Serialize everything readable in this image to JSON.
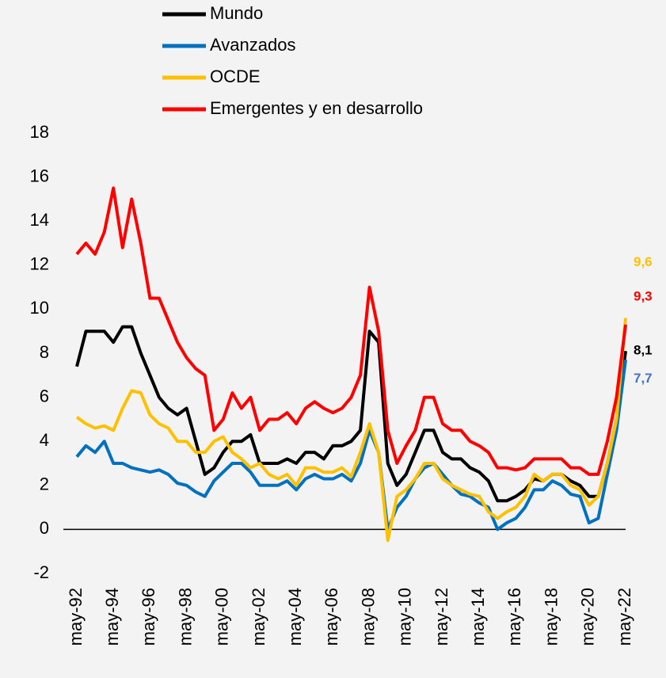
{
  "chart_data": {
    "type": "line",
    "categories": [
      "may-92",
      null,
      null,
      null,
      "may-94",
      null,
      null,
      null,
      "may-96",
      null,
      null,
      null,
      "may-98",
      null,
      null,
      null,
      "may-00",
      null,
      null,
      null,
      "may-02",
      null,
      null,
      null,
      "may-04",
      null,
      null,
      null,
      "may-06",
      null,
      null,
      null,
      "may-08",
      null,
      null,
      null,
      "may-10",
      null,
      null,
      null,
      "may-12",
      null,
      null,
      null,
      "may-14",
      null,
      null,
      null,
      "may-16",
      null,
      null,
      null,
      "may-18",
      null,
      null,
      null,
      "may-20",
      null,
      null,
      null,
      "may-22"
    ],
    "series": [
      {
        "name": "Mundo",
        "color": "#000000",
        "label_color": "#000000",
        "values": [
          7.4,
          9,
          9,
          9,
          8.5,
          9.2,
          9.2,
          8,
          7,
          6,
          5.5,
          5.2,
          5.5,
          4,
          2.5,
          2.8,
          3.5,
          4,
          4,
          4.3,
          3,
          3,
          3,
          3.2,
          3,
          3.5,
          3.5,
          3.2,
          3.8,
          3.8,
          4,
          4.5,
          9,
          8.5,
          3,
          2,
          2.5,
          3.5,
          4.5,
          4.5,
          3.5,
          3.2,
          3.2,
          2.8,
          2.6,
          2.2,
          1.3,
          1.3,
          1.5,
          1.8,
          2.3,
          2.2,
          2.5,
          2.5,
          2.2,
          2,
          1.5,
          1.5,
          3,
          5,
          8.1
        ],
        "value_labels": [
          null,
          null,
          null,
          null,
          null,
          null,
          null,
          null,
          null,
          null,
          null,
          null,
          null,
          null,
          null,
          null,
          null,
          null,
          null,
          null,
          null,
          null,
          null,
          null,
          null,
          null,
          null,
          null,
          null,
          null,
          null,
          null,
          null,
          null,
          null,
          null,
          null,
          null,
          null,
          null,
          null,
          null,
          null,
          null,
          null,
          null,
          null,
          null,
          null,
          null,
          null,
          null,
          null,
          null,
          null,
          null,
          null,
          null,
          null,
          null,
          "8,1"
        ]
      },
      {
        "name": "Avanzados",
        "color": "#0070c0",
        "label_color": "#4472c4",
        "values": [
          3.3,
          3.8,
          3.5,
          4,
          3,
          3,
          2.8,
          2.7,
          2.6,
          2.7,
          2.5,
          2.1,
          2,
          1.7,
          1.5,
          2.2,
          2.6,
          3,
          3,
          2.6,
          2,
          2,
          2,
          2.2,
          1.8,
          2.3,
          2.5,
          2.3,
          2.3,
          2.5,
          2.2,
          3,
          4.5,
          3.5,
          0,
          1,
          1.5,
          2.3,
          2.8,
          3,
          2.5,
          2,
          1.6,
          1.5,
          1.2,
          1,
          0,
          0.3,
          0.5,
          1,
          1.8,
          1.8,
          2.2,
          2,
          1.6,
          1.5,
          0.3,
          0.5,
          2.5,
          4.5,
          7.7
        ],
        "value_labels": [
          null,
          null,
          null,
          null,
          null,
          null,
          null,
          null,
          null,
          null,
          null,
          null,
          null,
          null,
          null,
          null,
          null,
          null,
          null,
          null,
          null,
          null,
          null,
          null,
          null,
          null,
          null,
          null,
          null,
          null,
          null,
          null,
          null,
          null,
          null,
          null,
          null,
          null,
          null,
          null,
          null,
          null,
          null,
          null,
          null,
          null,
          null,
          null,
          null,
          null,
          null,
          null,
          null,
          null,
          null,
          null,
          null,
          null,
          null,
          null,
          "7,7"
        ]
      },
      {
        "name": "OCDE",
        "color": "#ffc000",
        "label_color": "#ffc000",
        "values": [
          5.1,
          4.8,
          4.6,
          4.7,
          4.5,
          5.5,
          6.3,
          6.2,
          5.2,
          4.8,
          4.6,
          4,
          4,
          3.5,
          3.5,
          4,
          4.2,
          3.5,
          3.2,
          2.8,
          3,
          2.5,
          2.3,
          2.5,
          2,
          2.8,
          2.8,
          2.6,
          2.6,
          2.8,
          2.4,
          3.5,
          4.8,
          3.5,
          -0.5,
          1.5,
          1.8,
          2.3,
          3,
          3,
          2.3,
          2,
          1.8,
          1.6,
          1.5,
          0.8,
          0.5,
          0.8,
          1,
          1.5,
          2.5,
          2.2,
          2.5,
          2.5,
          2,
          1.8,
          1.1,
          1.5,
          3,
          5,
          9.6
        ],
        "value_labels": [
          null,
          null,
          null,
          null,
          null,
          null,
          null,
          null,
          null,
          null,
          null,
          null,
          null,
          null,
          null,
          null,
          null,
          null,
          null,
          null,
          null,
          null,
          null,
          null,
          null,
          null,
          null,
          null,
          null,
          null,
          null,
          null,
          null,
          null,
          null,
          null,
          null,
          null,
          null,
          null,
          null,
          null,
          null,
          null,
          null,
          null,
          null,
          null,
          null,
          null,
          null,
          null,
          null,
          null,
          null,
          null,
          null,
          null,
          null,
          null,
          "9,6"
        ]
      },
      {
        "name": "Emergentes y en desarrollo",
        "color": "#ff0000",
        "label_color": "#ff0000",
        "values": [
          12.5,
          13,
          12.5,
          13.5,
          15.5,
          12.8,
          15,
          13,
          10.5,
          10.5,
          9.5,
          8.5,
          7.8,
          7.3,
          7,
          4.5,
          5,
          6.2,
          5.5,
          6,
          4.5,
          5,
          5,
          5.3,
          4.8,
          5.5,
          5.8,
          5.5,
          5.3,
          5.5,
          6,
          7,
          11,
          9,
          4.5,
          3,
          3.8,
          4.5,
          6,
          6,
          4.8,
          4.5,
          4.5,
          4,
          3.8,
          3.5,
          2.8,
          2.8,
          2.7,
          2.8,
          3.2,
          3.2,
          3.2,
          3.2,
          2.8,
          2.8,
          2.5,
          2.5,
          4,
          6,
          9.3
        ],
        "value_labels": [
          null,
          null,
          null,
          null,
          null,
          null,
          null,
          null,
          null,
          null,
          null,
          null,
          null,
          null,
          null,
          null,
          null,
          null,
          null,
          null,
          null,
          null,
          null,
          null,
          null,
          null,
          null,
          null,
          null,
          null,
          null,
          null,
          null,
          null,
          null,
          null,
          null,
          null,
          null,
          null,
          null,
          null,
          null,
          null,
          null,
          null,
          null,
          null,
          null,
          null,
          null,
          null,
          null,
          null,
          null,
          null,
          null,
          null,
          null,
          null,
          "9,3"
        ]
      }
    ],
    "ylim": [
      -2,
      18
    ],
    "yticks": [
      -2,
      0,
      2,
      4,
      6,
      8,
      10,
      12,
      14,
      16,
      18
    ],
    "grid": false
  }
}
